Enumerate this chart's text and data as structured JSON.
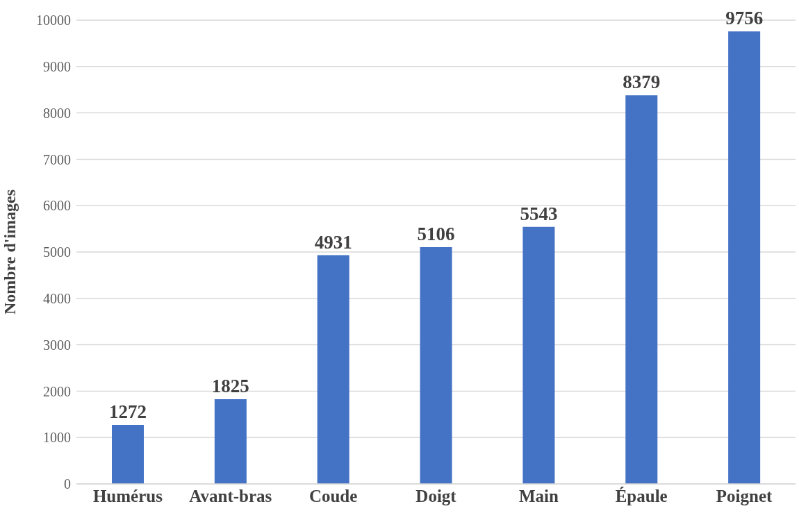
{
  "chart_data": {
    "type": "bar",
    "ylabel": "Nombre d'images",
    "categories": [
      "Humérus",
      "Avant-bras",
      "Coude",
      "Doigt",
      "Main",
      "Épaule",
      "Poignet"
    ],
    "values": [
      1272,
      1825,
      4931,
      5106,
      5543,
      8379,
      9756
    ],
    "color": "#4472c4",
    "ylim": [
      0,
      10000
    ],
    "yticks": [
      0,
      1000,
      2000,
      3000,
      4000,
      5000,
      6000,
      7000,
      8000,
      9000,
      10000
    ],
    "grid": "y",
    "data_labels": true
  }
}
